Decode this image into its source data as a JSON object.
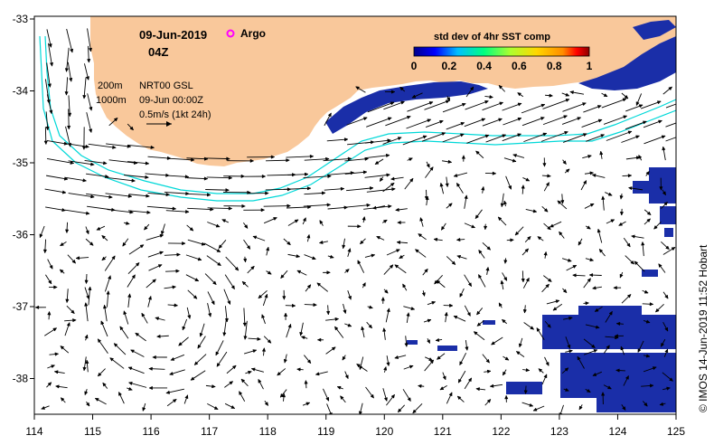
{
  "header": {
    "date": "09-Jun-2019",
    "hour": "04Z",
    "argo_label": "Argo"
  },
  "legend": {
    "depth_200": "200m",
    "depth_1000": "1000m",
    "model": "NRT00 GSL",
    "model_time": "09-Jun 00:00Z",
    "scale_label": "0.5m/s (1kt 24h)"
  },
  "colorbar": {
    "title": "std dev of 4hr SST comp",
    "ticks": [
      "0",
      "0.2",
      "0.4",
      "0.6",
      "0.8",
      "1"
    ],
    "colors": [
      "#00008b",
      "#0000ff",
      "#00bfff",
      "#00ff7f",
      "#adff2f",
      "#ffd700",
      "#ff8c00",
      "#ff0000",
      "#8b0000"
    ]
  },
  "axes": {
    "x_ticks": [
      "114",
      "115",
      "116",
      "117",
      "118",
      "119",
      "120",
      "121",
      "122",
      "123",
      "124",
      "125"
    ],
    "y_ticks": [
      "-33",
      "-34",
      "-35",
      "-36",
      "-37",
      "-38"
    ]
  },
  "colors": {
    "land": "#f9c89b",
    "isobath": "#00d8d8",
    "argo": "#ff00ff",
    "sst_patch": "#1a2ea8"
  },
  "credit": "© IMOS 14-Jun-2019 11:52 Hobart"
}
